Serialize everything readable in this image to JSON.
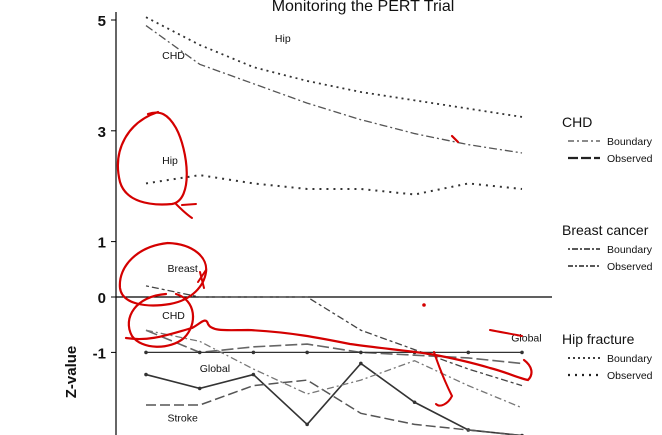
{
  "chart_data": {
    "type": "line",
    "title": "Monitoring the PERT Trial",
    "ylabel": "Z-value",
    "xlabel": "",
    "ylim": [
      -2.4,
      5.05
    ],
    "yticks": [
      {
        "value": 5,
        "label": "5"
      },
      {
        "value": 3,
        "label": "3"
      },
      {
        "value": 1,
        "label": "1"
      },
      {
        "value": 0,
        "label": "0"
      },
      {
        "value": -1,
        "label": "-1"
      }
    ],
    "x": [
      1,
      2,
      3,
      4,
      5,
      6,
      7,
      8
    ],
    "series": [
      {
        "name": "CHD Boundary",
        "group": "CHD",
        "color": "#555555",
        "dash": "8,3,2,3",
        "width": 1.3,
        "values": [
          4.9,
          4.2,
          3.85,
          3.5,
          3.2,
          2.95,
          2.75,
          2.6
        ]
      },
      {
        "name": "Hip Boundary",
        "group": "Hip fracture",
        "color": "#333333",
        "dash": "2,4",
        "width": 1.8,
        "values": [
          5.05,
          4.55,
          4.15,
          3.9,
          3.7,
          3.55,
          3.4,
          3.25
        ]
      },
      {
        "name": "Hip Observed",
        "group": "Hip fracture",
        "color": "#333333",
        "dash": "2,5",
        "width": 2,
        "values": [
          2.05,
          2.2,
          2.05,
          1.95,
          1.95,
          1.85,
          2.05,
          1.95
        ]
      },
      {
        "name": "Breast Boundary",
        "group": "Breast cancer",
        "color": "#444444",
        "dash": "3,3,7,3",
        "width": 1.3,
        "values": [
          0.2,
          0.0,
          0.0,
          0.0,
          -0.6,
          -0.95,
          -1.3,
          -1.6
        ]
      },
      {
        "name": "CHD Observed",
        "group": "CHD",
        "color": "#666666",
        "dash": "12,4",
        "width": 1.6,
        "values": [
          -0.6,
          -1.0,
          -0.9,
          -0.85,
          -1.0,
          -1.05,
          -1.1,
          -1.2
        ]
      },
      {
        "name": "Global Boundary",
        "group": "Global",
        "color": "#333333",
        "dash": "none",
        "width": 1.2,
        "values": [
          -1.0,
          -1.0,
          -1.0,
          -1.0,
          -1.0,
          -1.0,
          -1.0,
          -1.0
        ]
      },
      {
        "name": "Global Observed",
        "group": "Global",
        "color": "#333333",
        "dash": "none",
        "width": 1.6,
        "values": [
          -1.4,
          -1.65,
          -1.4,
          -2.3,
          -1.2,
          -1.9,
          -2.4,
          -2.5
        ]
      },
      {
        "name": "Stroke Boundary",
        "group": "Stroke",
        "color": "#555555",
        "dash": "10,4",
        "width": 1.5,
        "values": [
          -1.95,
          -1.95,
          -1.6,
          -1.5,
          -2.1,
          -2.3,
          -2.4,
          -2.5
        ]
      },
      {
        "name": "Observed (dash-dot)",
        "group": "Breast cancer",
        "color": "#777777",
        "dash": "7,3,2,3",
        "width": 1.3,
        "values": [
          -0.6,
          -0.8,
          -1.3,
          -1.75,
          -1.5,
          -1.15,
          -1.6,
          -2.0
        ]
      }
    ],
    "curve_labels": [
      {
        "text": "CHD",
        "x": 1.3,
        "y": 4.3
      },
      {
        "text": "Hip",
        "x": 3.4,
        "y": 4.6
      },
      {
        "text": "Hip",
        "x": 1.3,
        "y": 2.4
      },
      {
        "text": "Breast",
        "x": 1.4,
        "y": 0.45
      },
      {
        "text": "CHD",
        "x": 1.3,
        "y": -0.4
      },
      {
        "text": "Global",
        "x": 2.0,
        "y": -1.35
      },
      {
        "text": "Global",
        "x": 7.8,
        "y": -0.8
      },
      {
        "text": "Stroke",
        "x": 1.4,
        "y": -2.25
      }
    ],
    "legend": {
      "placement": "right",
      "groups": [
        {
          "title": "CHD",
          "entries": [
            {
              "label": "Boundary",
              "dash": "6,3,2,3",
              "width": 1.2,
              "color": "#444444"
            },
            {
              "label": "Observed",
              "dash": "10,3",
              "width": 2.2,
              "color": "#222222"
            }
          ]
        },
        {
          "title": "Breast cancer",
          "entries": [
            {
              "label": "Boundary",
              "dash": "2,2,6,2",
              "width": 1.6,
              "color": "#222222"
            },
            {
              "label": "Observed",
              "dash": "5,2,2,2",
              "width": 1.6,
              "color": "#222222"
            }
          ]
        },
        {
          "title": "Hip fracture",
          "entries": [
            {
              "label": "Boundary",
              "dash": "2,3",
              "width": 1.8,
              "color": "#222222"
            },
            {
              "label": "Observed",
              "dash": "2,5",
              "width": 2.2,
              "color": "#222222"
            }
          ]
        }
      ]
    },
    "annotation_color": "#d40000"
  }
}
